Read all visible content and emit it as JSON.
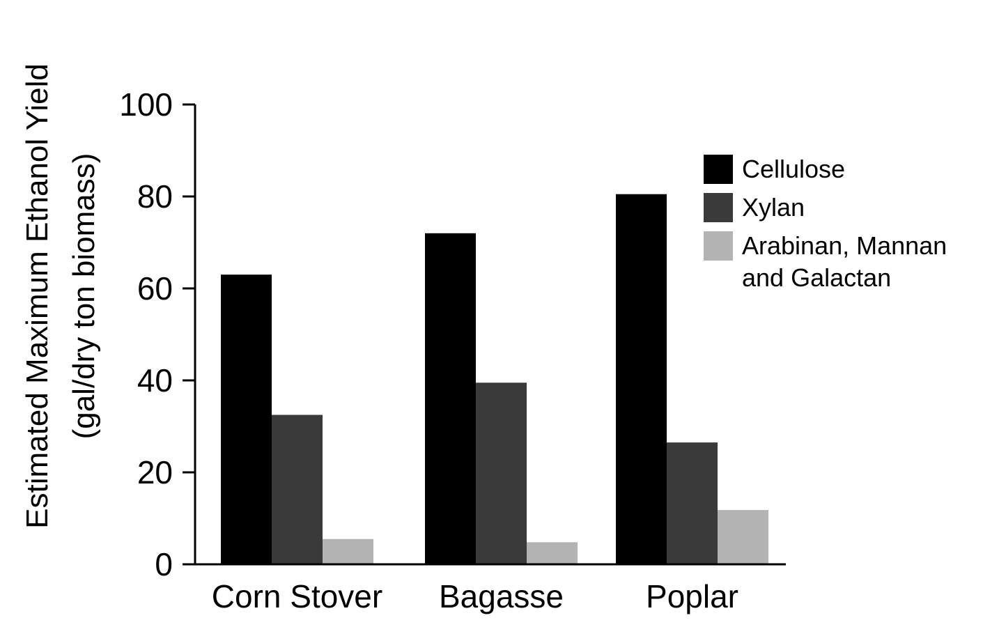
{
  "chart_data": {
    "type": "bar",
    "title": "",
    "xlabel": "",
    "ylabel_lines": [
      "Estimated Maximum Ethanol Yield",
      "(gal/dry ton biomass)"
    ],
    "categories": [
      "Corn Stover",
      "Bagasse",
      "Poplar"
    ],
    "series": [
      {
        "name": "Cellulose",
        "values": [
          63,
          72,
          80.5
        ],
        "color": "#000000"
      },
      {
        "name": "Xylan",
        "values": [
          32.5,
          39.5,
          26.5
        ],
        "color": "#3a3a3a"
      },
      {
        "name_lines": [
          "Arabinan, Mannan",
          "and Galactan"
        ],
        "values": [
          5.5,
          4.8,
          11.8
        ],
        "color": "#b3b3b3"
      }
    ],
    "ylim": [
      0,
      100
    ],
    "yticks": [
      "0",
      "20",
      "40",
      "60",
      "80",
      "100"
    ],
    "grid": false,
    "legend_position": "right"
  }
}
